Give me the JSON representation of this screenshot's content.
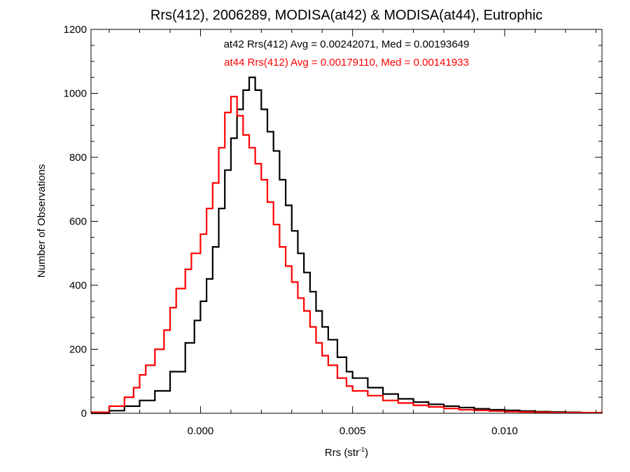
{
  "chart_data": {
    "type": "line",
    "step": true,
    "title": "Rrs(412), 2006289, MODISA(at42) & MODISA(at44), Eutrophic",
    "xlabel_main": "Rrs (str",
    "xlabel_sup": "-1",
    "xlabel_close": ")",
    "ylabel": "Number of Observations",
    "xlim": [
      -0.0036,
      0.0132
    ],
    "ylim": [
      0,
      1200
    ],
    "x_ticks": [
      {
        "value": 0.0,
        "label": "0.000"
      },
      {
        "value": 0.005,
        "label": "0.005"
      },
      {
        "value": 0.01,
        "label": "0.010"
      }
    ],
    "y_ticks": [
      {
        "value": 0,
        "label": "0"
      },
      {
        "value": 200,
        "label": "200"
      },
      {
        "value": 400,
        "label": "400"
      },
      {
        "value": 600,
        "label": "600"
      },
      {
        "value": 800,
        "label": "800"
      },
      {
        "value": 1000,
        "label": "1000"
      },
      {
        "value": 1200,
        "label": "1200"
      }
    ],
    "annotations": [
      {
        "text": "at42 Rrs(412) Avg = 0.00242071, Med = 0.00193649",
        "color": "#000000"
      },
      {
        "text": "at44 Rrs(412) Avg = 0.00179110, Med = 0.00141933",
        "color": "#ff0000"
      }
    ],
    "grid": false,
    "series": [
      {
        "id": "at42",
        "color": "#000000",
        "points": [
          [
            -0.0036,
            0
          ],
          [
            -0.003,
            8
          ],
          [
            -0.0025,
            22
          ],
          [
            -0.002,
            40
          ],
          [
            -0.0015,
            70
          ],
          [
            -0.001,
            130
          ],
          [
            -0.0005,
            220
          ],
          [
            -0.0002,
            290
          ],
          [
            0.0,
            350
          ],
          [
            0.0002,
            420
          ],
          [
            0.0004,
            520
          ],
          [
            0.0006,
            640
          ],
          [
            0.0008,
            760
          ],
          [
            0.001,
            860
          ],
          [
            0.0012,
            950
          ],
          [
            0.0014,
            1010
          ],
          [
            0.0016,
            1050
          ],
          [
            0.0018,
            1010
          ],
          [
            0.002,
            950
          ],
          [
            0.0022,
            880
          ],
          [
            0.0024,
            820
          ],
          [
            0.0026,
            730
          ],
          [
            0.0028,
            650
          ],
          [
            0.003,
            570
          ],
          [
            0.0032,
            500
          ],
          [
            0.0034,
            440
          ],
          [
            0.0036,
            380
          ],
          [
            0.0038,
            320
          ],
          [
            0.004,
            270
          ],
          [
            0.0042,
            230
          ],
          [
            0.0045,
            175
          ],
          [
            0.0048,
            130
          ],
          [
            0.005,
            110
          ],
          [
            0.0055,
            80
          ],
          [
            0.006,
            60
          ],
          [
            0.0065,
            45
          ],
          [
            0.007,
            35
          ],
          [
            0.0075,
            28
          ],
          [
            0.008,
            22
          ],
          [
            0.0085,
            18
          ],
          [
            0.009,
            14
          ],
          [
            0.0095,
            11
          ],
          [
            0.01,
            9
          ],
          [
            0.0105,
            7
          ],
          [
            0.011,
            5
          ],
          [
            0.0115,
            4
          ],
          [
            0.012,
            3
          ],
          [
            0.0125,
            2
          ],
          [
            0.0132,
            2
          ]
        ]
      },
      {
        "id": "at44",
        "color": "#ff0000",
        "points": [
          [
            -0.0036,
            3
          ],
          [
            -0.003,
            22
          ],
          [
            -0.0025,
            50
          ],
          [
            -0.0022,
            80
          ],
          [
            -0.002,
            120
          ],
          [
            -0.0018,
            150
          ],
          [
            -0.0015,
            200
          ],
          [
            -0.0012,
            260
          ],
          [
            -0.001,
            330
          ],
          [
            -0.0008,
            390
          ],
          [
            -0.0005,
            450
          ],
          [
            -0.0003,
            500
          ],
          [
            0.0,
            560
          ],
          [
            0.0002,
            640
          ],
          [
            0.0004,
            720
          ],
          [
            0.0006,
            830
          ],
          [
            0.0008,
            940
          ],
          [
            0.001,
            990
          ],
          [
            0.0012,
            930
          ],
          [
            0.0014,
            870
          ],
          [
            0.0016,
            830
          ],
          [
            0.0018,
            780
          ],
          [
            0.002,
            730
          ],
          [
            0.0022,
            660
          ],
          [
            0.0024,
            590
          ],
          [
            0.0026,
            520
          ],
          [
            0.0028,
            460
          ],
          [
            0.003,
            410
          ],
          [
            0.0032,
            360
          ],
          [
            0.0034,
            320
          ],
          [
            0.0036,
            270
          ],
          [
            0.0038,
            220
          ],
          [
            0.004,
            180
          ],
          [
            0.0042,
            150
          ],
          [
            0.0045,
            110
          ],
          [
            0.0048,
            85
          ],
          [
            0.005,
            70
          ],
          [
            0.0055,
            55
          ],
          [
            0.006,
            40
          ],
          [
            0.0065,
            32
          ],
          [
            0.007,
            25
          ],
          [
            0.0075,
            20
          ],
          [
            0.008,
            15
          ],
          [
            0.0085,
            11
          ],
          [
            0.009,
            9
          ],
          [
            0.0095,
            7
          ],
          [
            0.01,
            5
          ],
          [
            0.0105,
            4
          ],
          [
            0.011,
            3
          ],
          [
            0.0115,
            2
          ],
          [
            0.012,
            2
          ],
          [
            0.0132,
            1
          ]
        ]
      }
    ]
  }
}
